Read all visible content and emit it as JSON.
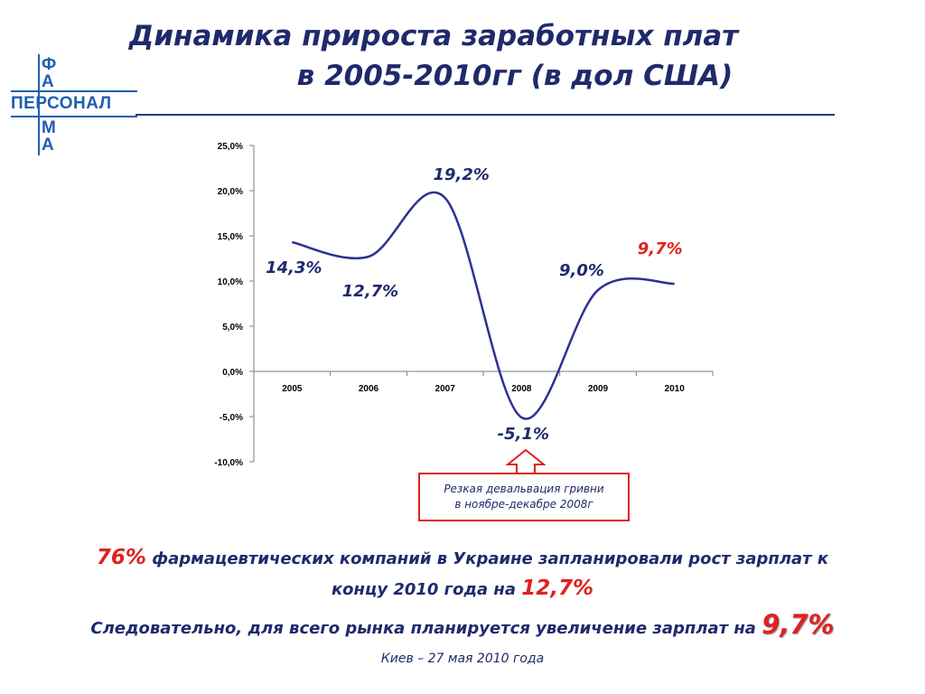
{
  "title": {
    "line1": "Динамика прироста заработных плат",
    "line2": "в 2005-2010гг (в дол США)"
  },
  "logo": {
    "top_letters": [
      "Ф",
      "А"
    ],
    "word": "ПЕРСОНАЛ",
    "bottom_letters": [
      "М",
      "А"
    ],
    "color": "#1f5fb0"
  },
  "chart_data": {
    "type": "line",
    "title": "",
    "xlabel": "",
    "ylabel": "",
    "categories": [
      "2005",
      "2006",
      "2007",
      "2008",
      "2009",
      "2010"
    ],
    "y_ticks": [
      "25,0%",
      "20,0%",
      "15,0%",
      "10,0%",
      "5,0%",
      "0,0%",
      "-5,0%",
      "-10,0%"
    ],
    "ylim": [
      -10,
      25
    ],
    "grid": false,
    "legend": "none",
    "series": [
      {
        "values": [
          14.3,
          12.7,
          19.2,
          -5.1,
          9.0,
          9.7
        ],
        "color": "#2e3192"
      }
    ],
    "data_labels": [
      {
        "text": "14,3%",
        "color": "#1f2a6b"
      },
      {
        "text": "12,7%",
        "color": "#1f2a6b"
      },
      {
        "text": "19,2%",
        "color": "#1f2a6b"
      },
      {
        "text": "-5,1%",
        "color": "#1f2a6b"
      },
      {
        "text": "9,0%",
        "color": "#1f2a6b"
      },
      {
        "text": "9,7%",
        "color": "#e02020"
      }
    ]
  },
  "note": {
    "line1": "Резкая девальвация гривни",
    "line2": "в ноябре-декабре 2008г",
    "border_color": "#e02020"
  },
  "summary": {
    "line1_pct": "76%",
    "line1_text": " фармацевтических компаний в Украине запланировали рост зарплат к",
    "line2_text": "концу 2010 года на ",
    "line2_pct": "12,7%",
    "line3_text": "Следовательно, для всего рынка планируется увеличение зарплат на ",
    "line3_pct": "9,7%"
  },
  "footer": "Киев – 27 мая 2010 года"
}
